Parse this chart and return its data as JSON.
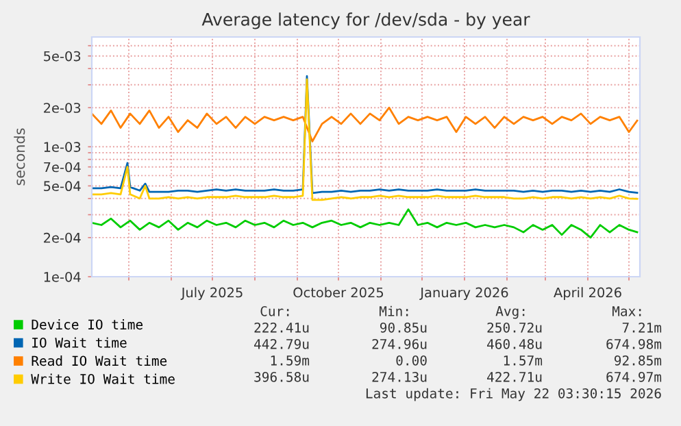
{
  "chart_data": {
    "type": "line",
    "title": "Average latency for /dev/sda - by year",
    "ylabel": "seconds",
    "log": true,
    "grid": true,
    "legend": "bottom",
    "xlim": [
      "2025-04-04",
      "2026-05-09"
    ],
    "xticks": [
      {
        "value": "2025-05-01",
        "label": null
      },
      {
        "value": "2025-06-01",
        "label": null
      },
      {
        "value": "2025-07-01",
        "label": "July 2025"
      },
      {
        "value": "2025-08-01",
        "label": null
      },
      {
        "value": "2025-09-01",
        "label": null
      },
      {
        "value": "2025-10-01",
        "label": "October 2025"
      },
      {
        "value": "2025-11-01",
        "label": null
      },
      {
        "value": "2025-12-01",
        "label": null
      },
      {
        "value": "2026-01-01",
        "label": "January 2026"
      },
      {
        "value": "2026-02-01",
        "label": null
      },
      {
        "value": "2026-03-01",
        "label": null
      },
      {
        "value": "2026-04-01",
        "label": "April 2026"
      },
      {
        "value": "2026-05-01",
        "label": null
      }
    ],
    "ylim": [
      0.0001,
      0.007
    ],
    "yticks": [
      {
        "value": 0.0001,
        "label": "1e-04"
      },
      {
        "value": 0.0002,
        "label": "2e-04"
      },
      {
        "value": 0.0003,
        "label": null
      },
      {
        "value": 0.0004,
        "label": null
      },
      {
        "value": 0.0005,
        "label": "5e-04"
      },
      {
        "value": 0.0006,
        "label": null
      },
      {
        "value": 0.0007,
        "label": "7e-04"
      },
      {
        "value": 0.0008,
        "label": null
      },
      {
        "value": 0.0009,
        "label": null
      },
      {
        "value": 0.001,
        "label": "1e-03"
      },
      {
        "value": 0.002,
        "label": "2e-03"
      },
      {
        "value": 0.003,
        "label": null
      },
      {
        "value": 0.004,
        "label": null
      },
      {
        "value": 0.005,
        "label": "5e-03"
      },
      {
        "value": 0.006,
        "label": null
      }
    ],
    "x": [
      "2025-04-04",
      "2025-04-11",
      "2025-04-18",
      "2025-04-25",
      "2025-05-02",
      "2025-05-09",
      "2025-05-16",
      "2025-05-23",
      "2025-05-30",
      "2025-06-06",
      "2025-06-13",
      "2025-06-20",
      "2025-06-27",
      "2025-07-04",
      "2025-07-11",
      "2025-07-18",
      "2025-07-25",
      "2025-08-01",
      "2025-08-08",
      "2025-08-15",
      "2025-08-22",
      "2025-08-29",
      "2025-09-05",
      "2025-09-12",
      "2025-09-19",
      "2025-09-26",
      "2025-10-03",
      "2025-10-10",
      "2025-10-17",
      "2025-10-24",
      "2025-10-31",
      "2025-11-07",
      "2025-11-14",
      "2025-11-21",
      "2025-11-28",
      "2025-12-05",
      "2025-12-12",
      "2025-12-19",
      "2025-12-26",
      "2026-01-02",
      "2026-01-09",
      "2026-01-16",
      "2026-01-23",
      "2026-01-30",
      "2026-02-06",
      "2026-02-13",
      "2026-02-20",
      "2026-02-27",
      "2026-03-06",
      "2026-03-13",
      "2026-03-20",
      "2026-03-27",
      "2026-04-03",
      "2026-04-10",
      "2026-04-17",
      "2026-04-24",
      "2026-05-01",
      "2026-05-07"
    ],
    "series": [
      {
        "name": "Device IO time",
        "color": "#00cc00",
        "values": [
          0.00026,
          0.00025,
          0.00028,
          0.00024,
          0.00027,
          0.00023,
          0.00026,
          0.00024,
          0.00027,
          0.00023,
          0.00026,
          0.00024,
          0.00027,
          0.00025,
          0.00026,
          0.00024,
          0.00027,
          0.00025,
          0.00026,
          0.00024,
          0.00027,
          0.00025,
          0.00026,
          0.00024,
          0.00026,
          0.00027,
          0.00025,
          0.00026,
          0.00024,
          0.00026,
          0.00025,
          0.00026,
          0.00025,
          0.00033,
          0.00025,
          0.00026,
          0.00024,
          0.00026,
          0.00025,
          0.00026,
          0.00024,
          0.00025,
          0.00024,
          0.00025,
          0.00024,
          0.00022,
          0.00025,
          0.00023,
          0.00025,
          0.00021,
          0.00025,
          0.00023,
          0.0002,
          0.00025,
          0.00022,
          0.00025,
          0.00023,
          0.00022
        ]
      },
      {
        "name": "IO Wait time",
        "color": "#0066b3",
        "x": [
          "2025-04-04",
          "2025-04-11",
          "2025-04-18",
          "2025-04-25",
          "2025-04-30",
          "2025-05-02",
          "2025-05-09",
          "2025-05-13",
          "2025-05-16",
          "2025-05-23",
          "2025-05-30",
          "2025-06-06",
          "2025-06-13",
          "2025-06-20",
          "2025-06-27",
          "2025-07-04",
          "2025-07-11",
          "2025-07-18",
          "2025-07-25",
          "2025-08-01",
          "2025-08-08",
          "2025-08-15",
          "2025-08-22",
          "2025-08-29",
          "2025-09-05",
          "2025-09-08",
          "2025-09-12",
          "2025-09-19",
          "2025-09-26",
          "2025-10-03",
          "2025-10-10",
          "2025-10-17",
          "2025-10-24",
          "2025-10-31",
          "2025-11-07",
          "2025-11-14",
          "2025-11-21",
          "2025-11-28",
          "2025-12-05",
          "2025-12-12",
          "2025-12-19",
          "2025-12-26",
          "2026-01-02",
          "2026-01-09",
          "2026-01-16",
          "2026-01-23",
          "2026-01-30",
          "2026-02-06",
          "2026-02-13",
          "2026-02-20",
          "2026-02-27",
          "2026-03-06",
          "2026-03-13",
          "2026-03-20",
          "2026-03-27",
          "2026-04-03",
          "2026-04-10",
          "2026-04-17",
          "2026-04-24",
          "2026-05-01",
          "2026-05-07"
        ],
        "values": [
          0.00048,
          0.00048,
          0.00049,
          0.00048,
          0.00075,
          0.00049,
          0.00046,
          0.00052,
          0.00045,
          0.00045,
          0.00045,
          0.00046,
          0.00046,
          0.00045,
          0.00046,
          0.00047,
          0.00046,
          0.00047,
          0.00046,
          0.00046,
          0.00046,
          0.00047,
          0.00046,
          0.00046,
          0.00047,
          0.0035,
          0.00044,
          0.00045,
          0.00045,
          0.00046,
          0.00045,
          0.00046,
          0.00046,
          0.00047,
          0.00046,
          0.00047,
          0.00046,
          0.00046,
          0.00046,
          0.00047,
          0.00046,
          0.00046,
          0.00046,
          0.00047,
          0.00046,
          0.00046,
          0.00046,
          0.00046,
          0.00045,
          0.00046,
          0.00045,
          0.00046,
          0.00046,
          0.00045,
          0.00046,
          0.00045,
          0.00046,
          0.00045,
          0.00047,
          0.00045,
          0.000443
        ]
      },
      {
        "name": "Read IO Wait time",
        "color": "#ff8000",
        "values": [
          0.0018,
          0.0015,
          0.0019,
          0.0014,
          0.0018,
          0.0015,
          0.0019,
          0.0014,
          0.0017,
          0.0013,
          0.0016,
          0.0014,
          0.0018,
          0.0015,
          0.0017,
          0.0014,
          0.0017,
          0.0015,
          0.0017,
          0.0016,
          0.0017,
          0.0016,
          0.0017,
          0.0011,
          0.0015,
          0.0017,
          0.0015,
          0.0018,
          0.0015,
          0.0018,
          0.0016,
          0.002,
          0.0015,
          0.0017,
          0.0016,
          0.0017,
          0.0016,
          0.0017,
          0.0013,
          0.0017,
          0.0015,
          0.0017,
          0.0014,
          0.0017,
          0.0015,
          0.0017,
          0.0016,
          0.0017,
          0.0015,
          0.0017,
          0.0016,
          0.0018,
          0.0015,
          0.0017,
          0.0016,
          0.0017,
          0.0013,
          0.00159
        ]
      },
      {
        "name": "Write IO Wait time",
        "color": "#ffcc00",
        "x": [
          "2025-04-04",
          "2025-04-11",
          "2025-04-18",
          "2025-04-25",
          "2025-04-30",
          "2025-05-02",
          "2025-05-09",
          "2025-05-13",
          "2025-05-16",
          "2025-05-23",
          "2025-05-30",
          "2025-06-06",
          "2025-06-13",
          "2025-06-20",
          "2025-06-27",
          "2025-07-04",
          "2025-07-11",
          "2025-07-18",
          "2025-07-25",
          "2025-08-01",
          "2025-08-08",
          "2025-08-15",
          "2025-08-22",
          "2025-08-29",
          "2025-09-05",
          "2025-09-08",
          "2025-09-12",
          "2025-09-19",
          "2025-09-26",
          "2025-10-03",
          "2025-10-10",
          "2025-10-17",
          "2025-10-24",
          "2025-10-31",
          "2025-11-07",
          "2025-11-14",
          "2025-11-21",
          "2025-11-28",
          "2025-12-05",
          "2025-12-12",
          "2025-12-19",
          "2025-12-26",
          "2026-01-02",
          "2026-01-09",
          "2026-01-16",
          "2026-01-23",
          "2026-01-30",
          "2026-02-06",
          "2026-02-13",
          "2026-02-20",
          "2026-02-27",
          "2026-03-06",
          "2026-03-13",
          "2026-03-20",
          "2026-03-27",
          "2026-04-03",
          "2026-04-10",
          "2026-04-17",
          "2026-04-24",
          "2026-05-01",
          "2026-05-07"
        ],
        "values": [
          0.00043,
          0.00043,
          0.00044,
          0.00043,
          0.0007,
          0.00043,
          0.0004,
          0.0005,
          0.0004,
          0.0004,
          0.00041,
          0.0004,
          0.00041,
          0.0004,
          0.00041,
          0.00041,
          0.00041,
          0.00042,
          0.00041,
          0.00041,
          0.00041,
          0.00042,
          0.00041,
          0.00041,
          0.00042,
          0.0033,
          0.00039,
          0.00039,
          0.0004,
          0.00041,
          0.0004,
          0.00041,
          0.00041,
          0.00042,
          0.00041,
          0.00042,
          0.00041,
          0.00041,
          0.00041,
          0.00042,
          0.00041,
          0.00041,
          0.00041,
          0.00042,
          0.00041,
          0.00041,
          0.00041,
          0.0004,
          0.0004,
          0.00041,
          0.0004,
          0.00041,
          0.00041,
          0.0004,
          0.00041,
          0.0004,
          0.00041,
          0.0004,
          0.00042,
          0.0004,
          0.000397
        ]
      }
    ],
    "annotations": [
      "Cur:",
      "Min:",
      "Avg:",
      "Max:",
      "222.41u",
      "90.85u",
      "250.72u",
      "7.21m",
      "442.79u",
      "274.96u",
      "460.48u",
      "674.98m",
      "1.59m",
      "0.00",
      "1.57m",
      "92.85m",
      "396.58u",
      "274.13u",
      "422.71u",
      "674.97m",
      "Last update: Fri May 22 03:30:15 2026"
    ]
  }
}
